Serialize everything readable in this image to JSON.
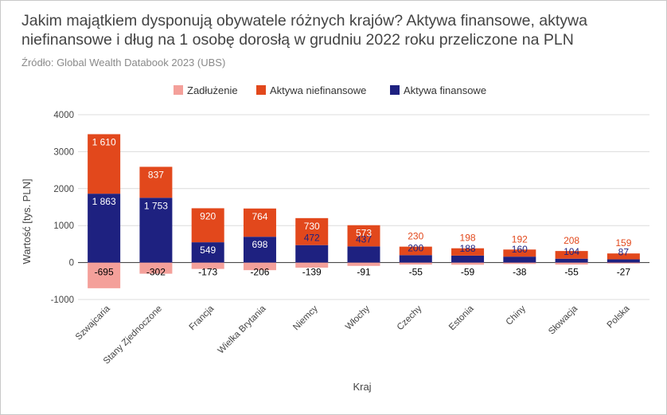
{
  "title": "Jakim majątkiem dysponują obywatele różnych krajów? Aktywa finansowe, aktywa niefinansowe i dług na 1 osobę dorosłą w grudniu 2022 roku przeliczone na PLN",
  "source": "Źródło: Global Wealth Databook 2023 (UBS)",
  "chart_data": {
    "type": "bar",
    "stacked": true,
    "xlabel": "Kraj",
    "ylabel": "Wartość [tys. PLN]",
    "ylim": [
      -1000,
      4000
    ],
    "yticks": [
      -1000,
      0,
      1000,
      2000,
      3000,
      4000
    ],
    "grid": true,
    "legend_position": "top",
    "categories": [
      "Szwajcaria",
      "Stany Zjednoczone",
      "Francja",
      "Wielka Brytania",
      "Niemcy",
      "Włochy",
      "Czechy",
      "Estonia",
      "Chiny",
      "Słowacja",
      "Polska"
    ],
    "series": [
      {
        "name": "Zadłużenie",
        "color": "#f4a09a",
        "values": [
          -695,
          -302,
          -173,
          -206,
          -139,
          -91,
          -55,
          -59,
          -38,
          -55,
          -27
        ],
        "labels": [
          "-695",
          "-302",
          "-173",
          "-206",
          "-139",
          "-91",
          "-55",
          "-59",
          "-38",
          "-55",
          "-27"
        ]
      },
      {
        "name": "Aktywa niefinansowe",
        "color": "#e2481c",
        "values": [
          1610,
          837,
          920,
          764,
          730,
          573,
          230,
          198,
          192,
          208,
          159
        ],
        "labels": [
          "1 610",
          "837",
          "920",
          "764",
          "730",
          "573",
          "230",
          "198",
          "192",
          "208",
          "159"
        ]
      },
      {
        "name": "Aktywa finansowe",
        "color": "#1e2180",
        "values": [
          1863,
          1753,
          549,
          698,
          472,
          437,
          200,
          188,
          160,
          104,
          87
        ],
        "labels": [
          "1 863",
          "1 753",
          "549",
          "698",
          "472",
          "437",
          "200",
          "188",
          "160",
          "104",
          "87"
        ]
      }
    ]
  }
}
